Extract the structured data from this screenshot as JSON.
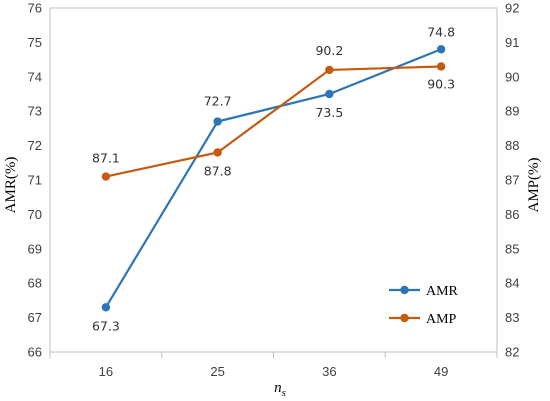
{
  "chart_data": {
    "type": "line",
    "categories": [
      "16",
      "25",
      "36",
      "49"
    ],
    "xlabel": "n_s",
    "ylabel_left": "AMR(%)",
    "ylabel_right": "AMP(%)",
    "ylim_left": [
      66,
      76
    ],
    "ylim_right": [
      82,
      92
    ],
    "yticks_left": [
      66,
      67,
      68,
      69,
      70,
      71,
      72,
      73,
      74,
      75,
      76
    ],
    "yticks_right": [
      82,
      83,
      84,
      85,
      86,
      87,
      88,
      89,
      90,
      91,
      92
    ],
    "grid": false,
    "legend_position": "bottom-right",
    "series": [
      {
        "name": "AMR",
        "axis": "left",
        "color": "#2E75B6",
        "values": [
          67.3,
          72.7,
          73.5,
          74.8
        ],
        "labels": [
          "67.3",
          "72.7",
          "73.5",
          "74.8"
        ]
      },
      {
        "name": "AMP",
        "axis": "right",
        "color": "#C55A11",
        "values": [
          87.1,
          87.8,
          90.2,
          90.3
        ],
        "labels": [
          "87.1",
          "87.8",
          "90.2",
          "90.3"
        ]
      }
    ]
  }
}
